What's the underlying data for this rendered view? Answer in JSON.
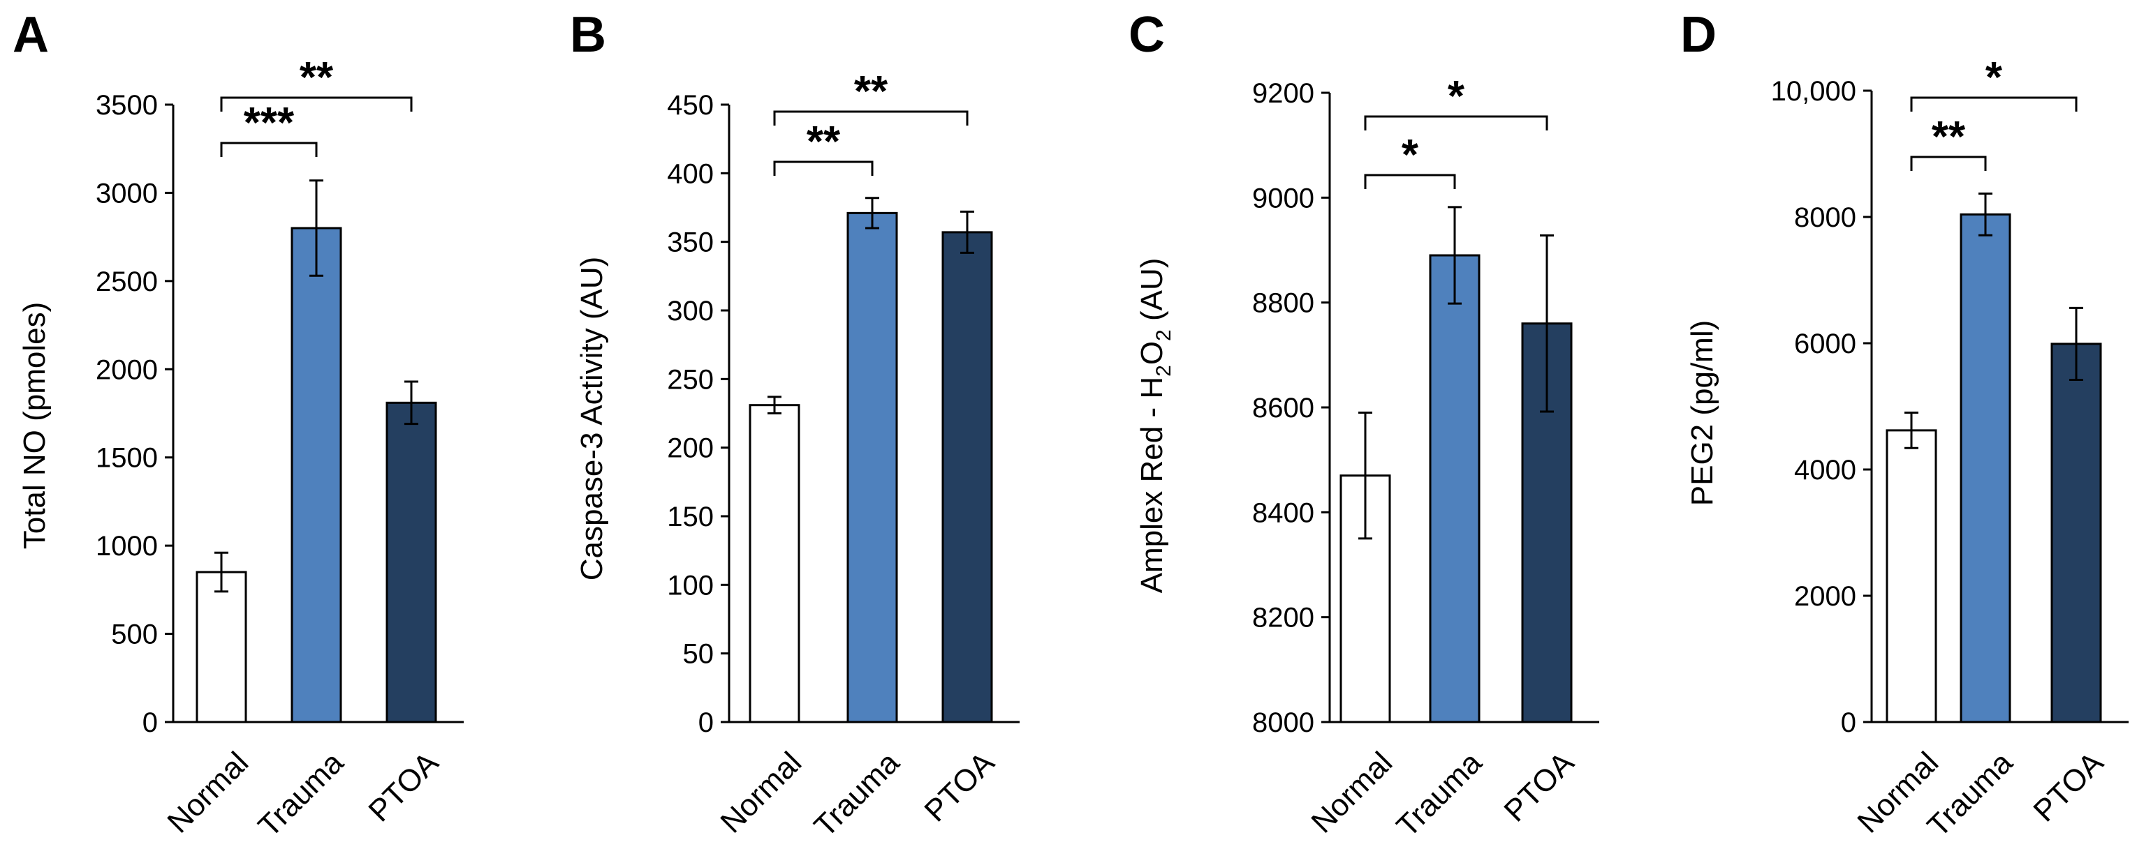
{
  "chart_data": [
    {
      "type": "bar",
      "panel": "A",
      "ylabel": "Total NO (pmoles)",
      "ylim": [
        0,
        3500
      ],
      "yticks": [
        "0",
        "500",
        "1000",
        "1500",
        "2000",
        "2500",
        "3000",
        "3500"
      ],
      "categories": [
        "Normal",
        "Trauma",
        "PTOA"
      ],
      "values": [
        850,
        2800,
        1810
      ],
      "errors": [
        110,
        270,
        120
      ],
      "colors": [
        "#ffffff",
        "#4f81bd",
        "#243f60"
      ],
      "significance": [
        {
          "from": 0,
          "to": 1,
          "label": "***"
        },
        {
          "from": 0,
          "to": 2,
          "label": "**"
        }
      ]
    },
    {
      "type": "bar",
      "panel": "B",
      "ylabel": "Caspase-3 Activity (AU)",
      "ylim": [
        0,
        450
      ],
      "yticks": [
        "0",
        "50",
        "100",
        "150",
        "200",
        "250",
        "300",
        "350",
        "400",
        "450"
      ],
      "categories": [
        "Normal",
        "Trauma",
        "PTOA"
      ],
      "values": [
        231,
        371,
        357
      ],
      "errors": [
        6,
        11,
        15
      ],
      "colors": [
        "#ffffff",
        "#4f81bd",
        "#243f60"
      ],
      "significance": [
        {
          "from": 0,
          "to": 1,
          "label": "**"
        },
        {
          "from": 0,
          "to": 2,
          "label": "**"
        }
      ]
    },
    {
      "type": "bar",
      "panel": "C",
      "ylabel_main": "Amplex Red - H",
      "ylabel_sub": "2",
      "ylabel_mid": "O",
      "ylabel_sub2": "2",
      "ylabel_end": " (AU)",
      "ylim": [
        8000,
        9200
      ],
      "yticks": [
        "8000",
        "8200",
        "8400",
        "8600",
        "8800",
        "9000",
        "9200"
      ],
      "categories": [
        "Normal",
        "Trauma",
        "PTOA"
      ],
      "values": [
        8470,
        8890,
        8760
      ],
      "errors": [
        120,
        92,
        168
      ],
      "colors": [
        "#ffffff",
        "#4f81bd",
        "#243f60"
      ],
      "significance": [
        {
          "from": 0,
          "to": 1,
          "label": "*"
        },
        {
          "from": 0,
          "to": 2,
          "label": "*"
        }
      ]
    },
    {
      "type": "bar",
      "panel": "D",
      "ylabel": "PEG2 (pg/ml)",
      "ylim": [
        0,
        10000
      ],
      "yticks": [
        "0",
        "2000",
        "4000",
        "6000",
        "8000",
        "10,000"
      ],
      "categories": [
        "Normal",
        "Trauma",
        "PTOA"
      ],
      "values": [
        4620,
        8040,
        5990
      ],
      "errors": [
        280,
        330,
        570
      ],
      "colors": [
        "#ffffff",
        "#4f81bd",
        "#243f60"
      ],
      "significance": [
        {
          "from": 0,
          "to": 1,
          "label": "**"
        },
        {
          "from": 0,
          "to": 2,
          "label": "*"
        }
      ]
    }
  ]
}
